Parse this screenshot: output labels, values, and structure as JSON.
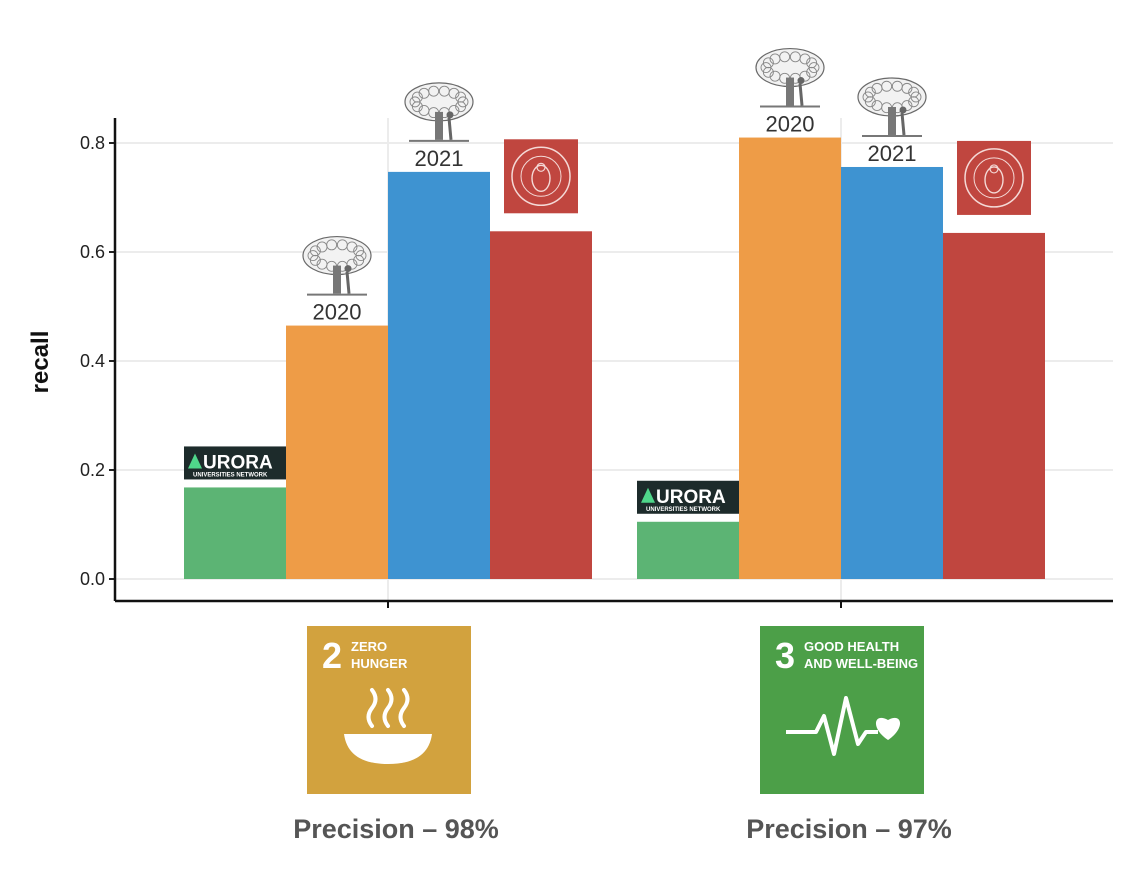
{
  "chart_data": {
    "type": "bar",
    "ylabel": "recall",
    "ylim": [
      0,
      0.84
    ],
    "yticks": [
      "0.0",
      "0.2",
      "0.4",
      "0.6",
      "0.8"
    ],
    "grid": true,
    "colors": [
      "#5cb474",
      "#ee9c47",
      "#3e93d1",
      "#c0463f"
    ],
    "groups": [
      {
        "sdg": {
          "number": "2",
          "line1": "ZERO",
          "line2": "HUNGER",
          "color": "#d2a23e",
          "icon": "bowl-icon"
        },
        "precision": "Precision – 98%",
        "bars": [
          {
            "value": 0.168,
            "label": "",
            "logo": "aurora-logo"
          },
          {
            "value": 0.465,
            "label": "2020",
            "logo": "elsevier-logo"
          },
          {
            "value": 0.747,
            "label": "2021",
            "logo": "elsevier-logo"
          },
          {
            "value": 0.638,
            "label": "",
            "logo": "uib-seal-logo"
          }
        ]
      },
      {
        "sdg": {
          "number": "3",
          "line1": "GOOD HEALTH",
          "line2": "AND WELL-BEING",
          "color": "#4c9f48",
          "icon": "heartbeat-icon"
        },
        "precision": "Precision – 97%",
        "bars": [
          {
            "value": 0.105,
            "label": "",
            "logo": "aurora-logo"
          },
          {
            "value": 0.81,
            "label": "2020",
            "logo": "elsevier-logo"
          },
          {
            "value": 0.756,
            "label": "2021",
            "logo": "elsevier-logo"
          },
          {
            "value": 0.635,
            "label": "",
            "logo": "uib-seal-logo"
          }
        ]
      }
    ]
  },
  "logos": {
    "aurora": {
      "title": "URORA",
      "subtitle": "UNIVERSITIES NETWORK"
    }
  }
}
